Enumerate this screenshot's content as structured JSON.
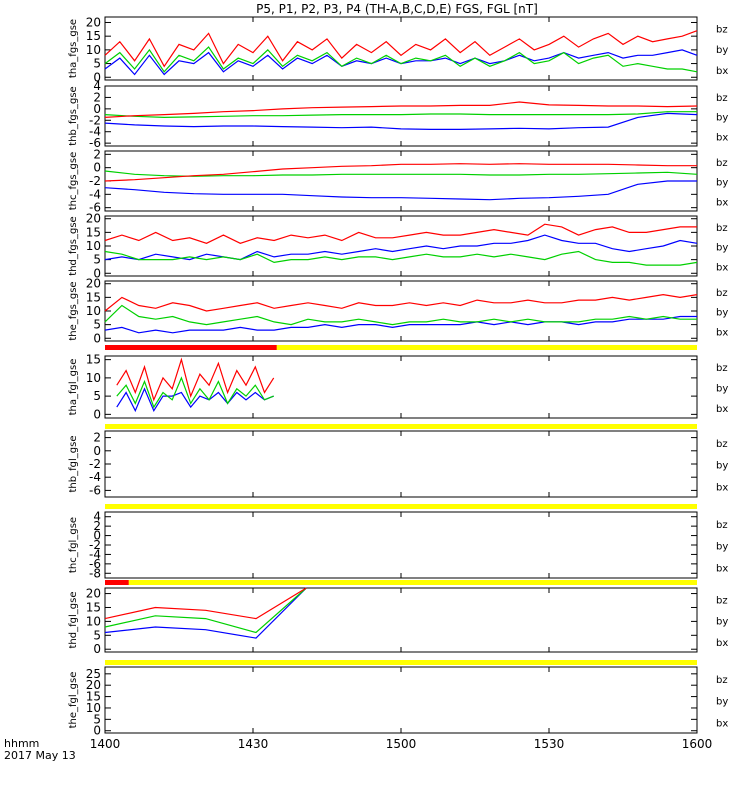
{
  "title": "P5, P1, P2, P3, P4 (TH-A,B,C,D,E) FGS, FGL [nT]",
  "footer": {
    "time_unit": "hhmm",
    "date": "2017 May 13"
  },
  "colors": {
    "bz": "#ff0000",
    "by": "#00d000",
    "bx": "#0000ff",
    "bar_available": "#ffff00",
    "bar_mode": "#ff0000"
  },
  "chart_data": {
    "type": "line",
    "x_axis": {
      "range": [
        "1400",
        "1600"
      ],
      "tick_labels": [
        "1400",
        "1430",
        "1500",
        "1530",
        "1600"
      ]
    },
    "panels": [
      {
        "ylabel": "tha_fgs_gse",
        "yticks": [
          0,
          5,
          10,
          15,
          20
        ],
        "ylim": [
          -1,
          22
        ],
        "legend": [
          "bz",
          "by",
          "bx"
        ],
        "series": [
          {
            "name": "bz",
            "values": [
              8,
              13,
              6,
              14,
              4,
              12,
              10,
              16,
              5,
              12,
              9,
              15,
              6,
              13,
              10,
              14,
              7,
              12,
              9,
              13,
              8,
              12,
              10,
              14,
              9,
              13,
              8,
              11,
              14,
              10,
              12,
              15,
              11,
              14,
              16,
              12,
              15,
              13,
              14,
              15,
              17
            ]
          },
          {
            "name": "by",
            "values": [
              5,
              9,
              3,
              10,
              2,
              8,
              6,
              11,
              3,
              7,
              5,
              10,
              4,
              8,
              6,
              9,
              4,
              7,
              5,
              8,
              5,
              7,
              6,
              8,
              4,
              7,
              4,
              6,
              9,
              5,
              6,
              9,
              5,
              7,
              8,
              4,
              5,
              4,
              3,
              3,
              2
            ]
          },
          {
            "name": "bx",
            "values": [
              3,
              7,
              1,
              8,
              1,
              6,
              5,
              9,
              2,
              6,
              4,
              8,
              3,
              7,
              5,
              8,
              4,
              6,
              5,
              7,
              5,
              6,
              6,
              7,
              5,
              7,
              5,
              6,
              8,
              6,
              7,
              9,
              7,
              8,
              9,
              7,
              8,
              8,
              9,
              10,
              8
            ]
          }
        ]
      },
      {
        "ylabel": "thb_fgs_gse",
        "yticks": [
          -6,
          -4,
          -2,
          0,
          2,
          4
        ],
        "ylim": [
          -6.5,
          4
        ],
        "legend": [
          "bz",
          "by",
          "bx"
        ],
        "series": [
          {
            "name": "bz",
            "values": [
              -1.5,
              -1.2,
              -1,
              -0.8,
              -0.5,
              -0.3,
              0,
              0.2,
              0.3,
              0.4,
              0.5,
              0.5,
              0.6,
              0.6,
              1.2,
              0.7,
              0.6,
              0.5,
              0.5,
              0.4,
              0.5
            ]
          },
          {
            "name": "by",
            "values": [
              -1,
              -1.3,
              -1.5,
              -1.4,
              -1.3,
              -1.2,
              -1.2,
              -1.1,
              -1,
              -1,
              -1,
              -0.9,
              -0.9,
              -1,
              -1,
              -1,
              -1,
              -1,
              -0.9,
              -0.5,
              -0.5
            ]
          },
          {
            "name": "bx",
            "values": [
              -2.5,
              -2.8,
              -3,
              -3.1,
              -3,
              -3,
              -3.1,
              -3.2,
              -3.3,
              -3.2,
              -3.5,
              -3.6,
              -3.6,
              -3.5,
              -3.4,
              -3.5,
              -3.3,
              -3.2,
              -1.5,
              -0.8,
              -1
            ]
          }
        ]
      },
      {
        "ylabel": "thc_fgs_gse",
        "yticks": [
          -6,
          -4,
          -2,
          0,
          2
        ],
        "ylim": [
          -6.5,
          2.5
        ],
        "legend": [
          "bz",
          "by",
          "bx"
        ],
        "series": [
          {
            "name": "bz",
            "values": [
              -2,
              -1.8,
              -1.5,
              -1.2,
              -1,
              -0.6,
              -0.2,
              0,
              0.2,
              0.3,
              0.5,
              0.5,
              0.6,
              0.5,
              0.6,
              0.5,
              0.5,
              0.5,
              0.4,
              0.3,
              0.3
            ]
          },
          {
            "name": "by",
            "values": [
              -0.5,
              -1,
              -1.2,
              -1.3,
              -1.2,
              -1.2,
              -1.1,
              -1.1,
              -1,
              -1,
              -1,
              -1,
              -1,
              -1.1,
              -1.1,
              -1,
              -1,
              -0.9,
              -0.8,
              -0.7,
              -1
            ]
          },
          {
            "name": "bx",
            "values": [
              -3,
              -3.3,
              -3.7,
              -3.9,
              -4,
              -4,
              -4,
              -4.2,
              -4.4,
              -4.5,
              -4.5,
              -4.6,
              -4.7,
              -4.8,
              -4.6,
              -4.5,
              -4.3,
              -4,
              -2.5,
              -2,
              -2
            ]
          }
        ]
      },
      {
        "ylabel": "thd_fgs_gse",
        "yticks": [
          0,
          5,
          10,
          15,
          20
        ],
        "ylim": [
          -1,
          21
        ],
        "legend": [
          "bz",
          "by",
          "bx"
        ],
        "series": [
          {
            "name": "bz",
            "values": [
              12,
              14,
              12,
              15,
              12,
              13,
              11,
              14,
              11,
              13,
              12,
              14,
              13,
              14,
              12,
              15,
              13,
              13,
              14,
              15,
              14,
              14,
              15,
              16,
              15,
              14,
              18,
              17,
              14,
              16,
              17,
              15,
              15,
              16,
              17,
              17
            ]
          },
          {
            "name": "by",
            "values": [
              8,
              7,
              5,
              5,
              5,
              6,
              5,
              6,
              5,
              7,
              4,
              5,
              5,
              6,
              5,
              6,
              6,
              5,
              6,
              7,
              6,
              6,
              7,
              6,
              7,
              6,
              5,
              7,
              8,
              5,
              4,
              4,
              3,
              3,
              3,
              4
            ]
          },
          {
            "name": "bx",
            "values": [
              5,
              6,
              5,
              7,
              6,
              5,
              7,
              6,
              5,
              8,
              6,
              7,
              7,
              8,
              7,
              8,
              9,
              8,
              9,
              10,
              9,
              10,
              10,
              11,
              11,
              12,
              14,
              12,
              11,
              11,
              9,
              8,
              9,
              10,
              12,
              11
            ]
          }
        ]
      },
      {
        "ylabel": "the_fgs_gse",
        "yticks": [
          0,
          5,
          10,
          15,
          20
        ],
        "ylim": [
          -1,
          21
        ],
        "legend": [
          "bz",
          "by",
          "bx"
        ],
        "series": [
          {
            "name": "bz",
            "values": [
              10,
              15,
              12,
              11,
              13,
              12,
              10,
              11,
              12,
              13,
              11,
              12,
              13,
              12,
              11,
              13,
              12,
              12,
              13,
              12,
              13,
              12,
              14,
              13,
              13,
              14,
              13,
              13,
              14,
              14,
              15,
              14,
              15,
              16,
              15,
              16
            ]
          },
          {
            "name": "by",
            "values": [
              6,
              12,
              8,
              7,
              8,
              6,
              5,
              6,
              7,
              8,
              6,
              5,
              7,
              6,
              6,
              7,
              6,
              5,
              6,
              6,
              7,
              6,
              6,
              7,
              6,
              7,
              6,
              6,
              6,
              7,
              7,
              8,
              7,
              8,
              7,
              7
            ]
          },
          {
            "name": "bx",
            "values": [
              3,
              4,
              2,
              3,
              2,
              3,
              3,
              3,
              4,
              3,
              3,
              4,
              4,
              5,
              4,
              5,
              5,
              4,
              5,
              5,
              5,
              5,
              6,
              5,
              6,
              5,
              6,
              6,
              5,
              6,
              6,
              7,
              7,
              7,
              8,
              8
            ]
          }
        ]
      },
      {
        "ylabel": "tha_fgl_gse",
        "yticks": [
          0,
          5,
          10,
          15
        ],
        "ylim": [
          -1,
          16
        ],
        "legend": [
          "bz",
          "by",
          "bx"
        ],
        "series": [
          {
            "name": "bz",
            "values": [
              8,
              12,
              6,
              13,
              4,
              10,
              7,
              15,
              5,
              11,
              8,
              14,
              6,
              12,
              8,
              13,
              6,
              10
            ]
          },
          {
            "name": "by",
            "values": [
              5,
              8,
              3,
              9,
              2,
              6,
              4,
              10,
              3,
              7,
              4,
              9,
              3,
              7,
              5,
              8,
              4,
              5
            ]
          },
          {
            "name": "bx",
            "values": [
              2,
              6,
              1,
              7,
              1,
              5,
              5,
              6,
              2,
              5,
              4,
              6,
              3,
              6,
              4,
              6,
              4,
              5
            ]
          }
        ]
      },
      {
        "ylabel": "thb_fgl_gse",
        "yticks": [
          -6,
          -4,
          -2,
          0,
          2
        ],
        "ylim": [
          -7,
          3
        ],
        "legend": [
          "bz",
          "by",
          "bx"
        ],
        "series": []
      },
      {
        "ylabel": "thc_fgl_gse",
        "yticks": [
          -8,
          -6,
          -4,
          -2,
          0,
          2,
          4
        ],
        "ylim": [
          -9,
          5
        ],
        "legend": [
          "bz",
          "by",
          "bx"
        ],
        "series": []
      },
      {
        "ylabel": "thd_fgl_gse",
        "yticks": [
          0,
          5,
          10,
          15,
          20
        ],
        "ylim": [
          -1,
          22
        ],
        "legend": [
          "bz",
          "by",
          "bx"
        ],
        "series": [
          {
            "name": "bz",
            "values": [
              11,
              15,
              14,
              11,
              22
            ]
          },
          {
            "name": "by",
            "values": [
              8,
              12,
              11,
              6,
              22
            ]
          },
          {
            "name": "bx",
            "values": [
              6,
              8,
              7,
              4,
              22
            ]
          }
        ]
      },
      {
        "ylabel": "the_fgl_gse",
        "yticks": [
          0,
          5,
          10,
          15,
          20,
          25
        ],
        "ylim": [
          -1,
          28
        ],
        "legend": [
          "bz",
          "by",
          "bx"
        ],
        "series": []
      }
    ]
  }
}
